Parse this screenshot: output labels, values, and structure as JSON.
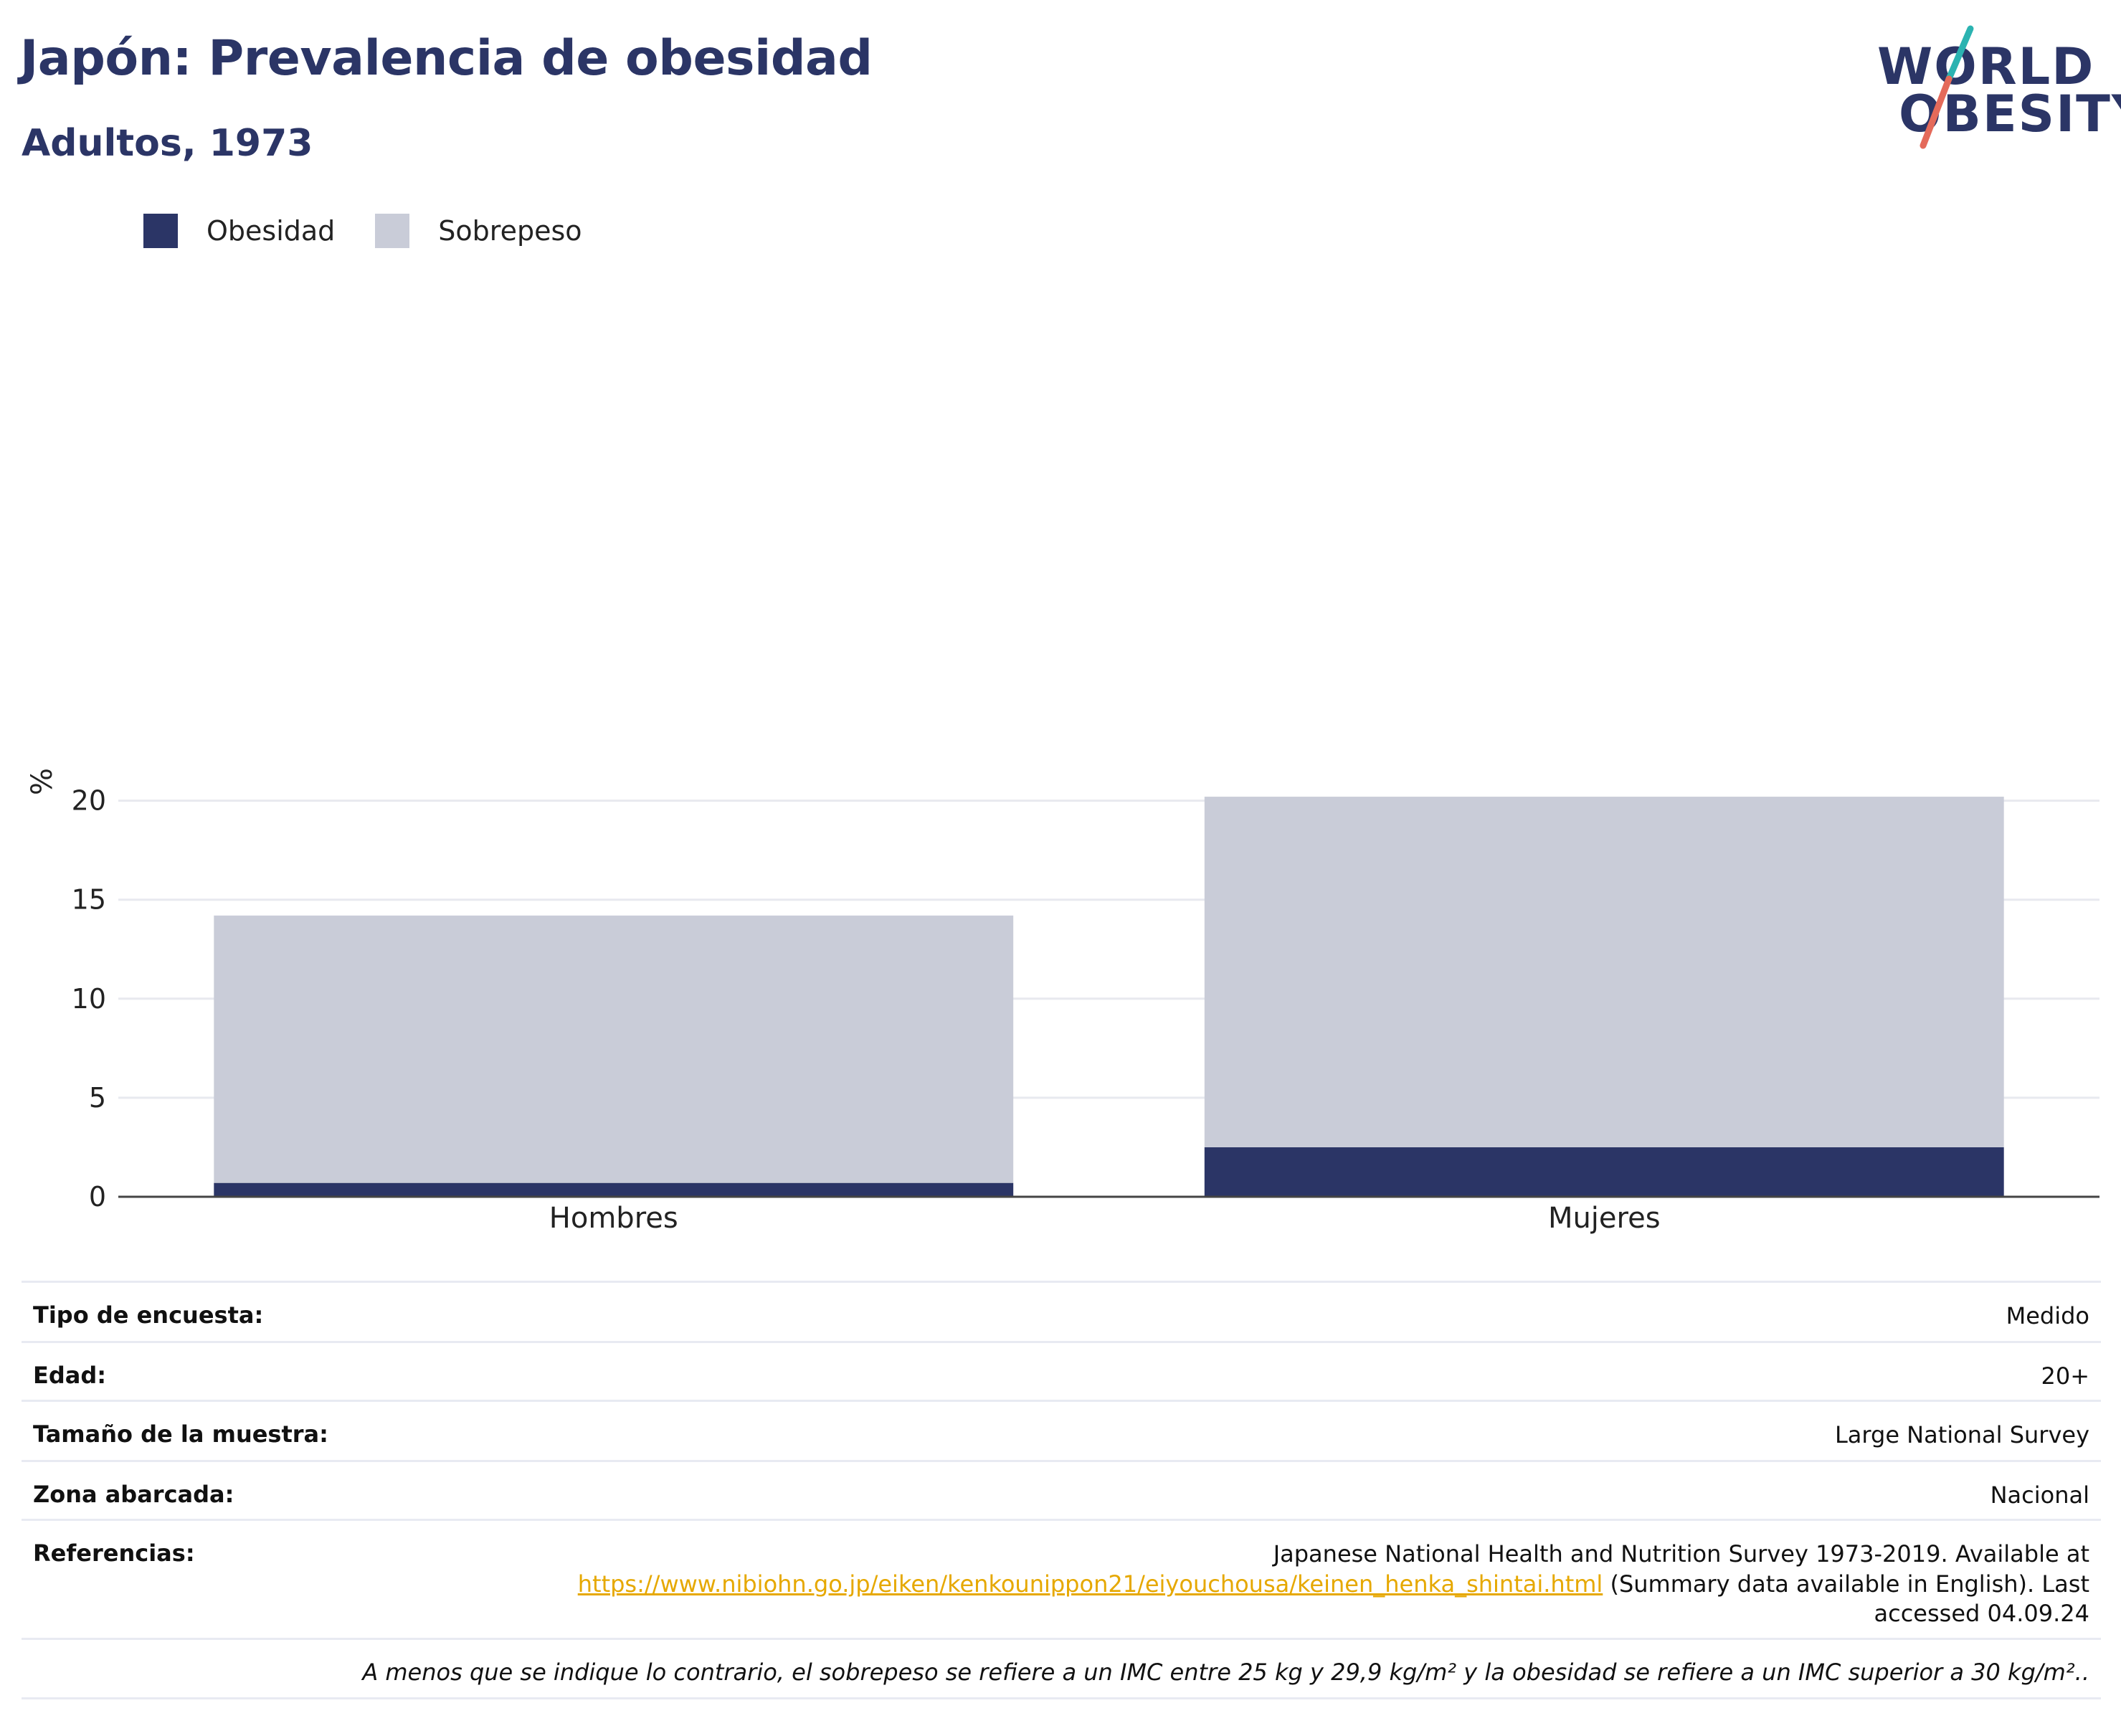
{
  "header": {
    "title": "Japón: Prevalencia de obesidad",
    "subtitle": "Adultos, 1973"
  },
  "logo": {
    "line1": "WORLD",
    "line2": "OBESITY"
  },
  "colors": {
    "obesity": "#2b3566",
    "overweight": "#c9ccd8",
    "title": "#2b3566",
    "link": "#e6a800"
  },
  "legend": [
    {
      "label": "Obesidad",
      "color": "#2b3566"
    },
    {
      "label": "Sobrepeso",
      "color": "#c9ccd8"
    }
  ],
  "chart_data": {
    "type": "bar",
    "stacked": true,
    "categories": [
      "Hombres",
      "Mujeres"
    ],
    "series": [
      {
        "name": "Obesidad",
        "values": [
          0.7,
          2.5
        ]
      },
      {
        "name": "Sobrepeso",
        "values": [
          13.5,
          17.7
        ]
      }
    ],
    "totals": [
      14.2,
      20.2
    ],
    "ylabel": "%",
    "ylim": [
      0,
      21
    ],
    "yticks": [
      0,
      5,
      10,
      15,
      20
    ],
    "grid": true,
    "legend_position": "top-left"
  },
  "info": {
    "rows": [
      {
        "key": "Tipo de encuesta:",
        "value": "Medido"
      },
      {
        "key": "Edad:",
        "value": "20+"
      },
      {
        "key": "Tamaño de la muestra:",
        "value": "Large National Survey"
      },
      {
        "key": "Zona abarcada:",
        "value": "Nacional"
      }
    ],
    "references": {
      "key": "Referencias:",
      "line1": "Japanese National Health and Nutrition Survey 1973-2019. Available at",
      "link": "https://www.nibiohn.go.jp/eiken/kenkounippon21/eiyouchousa/keinen_henka_shintai.html",
      "after_link": " (Summary data available in English). Last",
      "line3": "accessed 04.09.24"
    },
    "note": "A menos que se indique lo contrario, el sobrepeso se refiere a un IMC entre 25 kg y 29,9 kg/m² y la obesidad se refiere a un IMC superior a 30 kg/m².."
  }
}
